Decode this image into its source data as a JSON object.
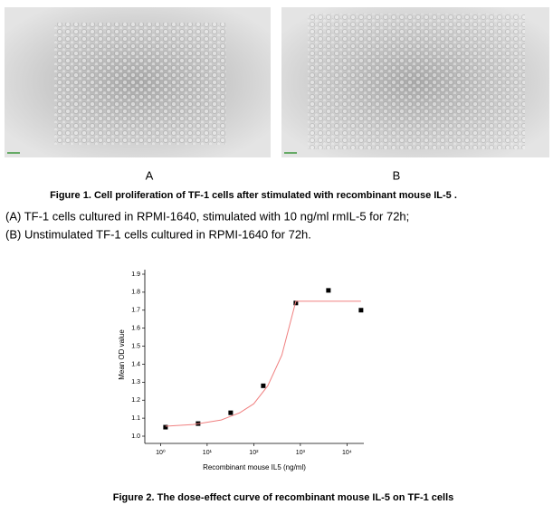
{
  "figure1": {
    "labels": [
      "A",
      "B"
    ],
    "caption": "Figure 1. Cell proliferation  of TF-1 cells after stimulated with recombinant mouse IL-5 .",
    "lines": [
      "(A) TF-1 cells cultured in RPMI-1640, stimulated with 10 ng/ml rmIL-5 for 72h;",
      "(B) Unstimulated TF-1 cells cultured in RPMI-1640 for 72h."
    ]
  },
  "chart_data": {
    "type": "scatter",
    "x_label": "Recombinant mouse IL5 (ng/ml)",
    "y_label": "Mean OD value",
    "log_x": true,
    "xlim": [
      0.46,
      23000
    ],
    "ylim": [
      1.0,
      1.9
    ],
    "xticks": [
      {
        "value": 1,
        "label": "10⁰"
      },
      {
        "value": 10,
        "label": "10¹"
      },
      {
        "value": 100,
        "label": "10²"
      },
      {
        "value": 1000,
        "label": "10³"
      },
      {
        "value": 10000,
        "label": "10⁴"
      }
    ],
    "yticks": [
      {
        "value": 1,
        "label": "1.0"
      },
      1.1,
      1.2,
      1.3,
      1.4,
      1.5,
      1.6,
      1.7,
      1.8,
      1.9
    ],
    "series": [
      {
        "color": "#000000",
        "x": [
          1.28,
          6.4,
          32,
          160,
          800,
          4000,
          20000
        ],
        "values": [
          1.05,
          1.07,
          1.13,
          1.28,
          1.74,
          1.81,
          1.7
        ]
      },
      {
        "type": "line",
        "color": "#f08080",
        "x": [
          1.28,
          5,
          20,
          50,
          100,
          200,
          400,
          800,
          20000
        ],
        "values": [
          1.055,
          1.065,
          1.09,
          1.13,
          1.18,
          1.28,
          1.45,
          1.75,
          1.75
        ]
      }
    ]
  },
  "figure2": {
    "caption": "Figure 2. The dose-effect curve of recombinant mouse IL-5 on TF-1 cells"
  }
}
